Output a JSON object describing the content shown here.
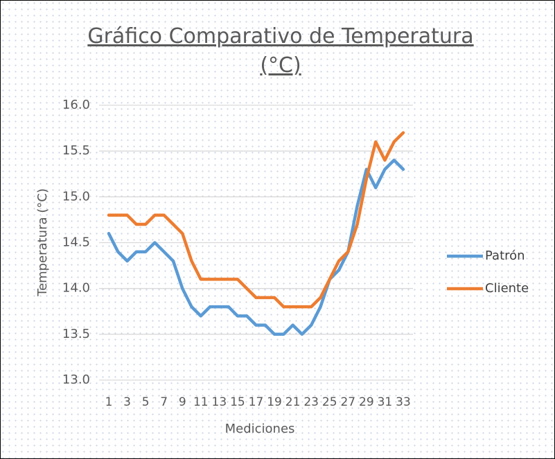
{
  "chart_data": {
    "type": "line",
    "title": "Gráfico Comparativo de Temperatura (°C)",
    "y_label": "Temperatura (°C)",
    "x_label": "Mediciones",
    "categories": [
      1,
      null,
      3,
      null,
      5,
      null,
      7,
      null,
      9,
      null,
      11,
      null,
      13,
      null,
      15,
      null,
      17,
      null,
      19,
      null,
      21,
      null,
      23,
      null,
      25,
      null,
      27,
      null,
      29,
      null,
      31,
      null,
      33
    ],
    "series": [
      {
        "name": "Patrón",
        "color": "#5b9bd5",
        "values": [
          14.6,
          14.4,
          14.3,
          14.4,
          14.4,
          14.5,
          14.4,
          14.3,
          14.0,
          13.8,
          13.7,
          13.8,
          13.8,
          13.8,
          13.7,
          13.7,
          13.6,
          13.6,
          13.5,
          13.5,
          13.6,
          13.5,
          13.6,
          13.8,
          14.1,
          14.2,
          14.4,
          14.9,
          15.3,
          15.1,
          15.3,
          15.4,
          15.3
        ]
      },
      {
        "name": "Cliente",
        "color": "#ed7d31",
        "values": [
          14.8,
          14.8,
          14.8,
          14.7,
          14.7,
          14.8,
          14.8,
          14.7,
          14.6,
          14.3,
          14.1,
          14.1,
          14.1,
          14.1,
          14.1,
          14.0,
          13.9,
          13.9,
          13.9,
          13.8,
          13.8,
          13.8,
          13.8,
          13.9,
          14.1,
          14.3,
          14.4,
          14.7,
          15.2,
          15.6,
          15.4,
          15.6,
          15.7
        ]
      }
    ],
    "ylim": [
      13,
      16
    ],
    "yticks": [
      {
        "value": 13,
        "label": "13.0"
      },
      {
        "value": 13.5,
        "label": "13.5"
      },
      {
        "value": 14,
        "label": "14.0"
      },
      {
        "value": 14.5,
        "label": "14.5"
      },
      {
        "value": 15,
        "label": "15.0"
      },
      {
        "value": 15.5,
        "label": "15.5"
      },
      {
        "value": 16,
        "label": "16.0"
      }
    ],
    "grid": true,
    "legend": "right"
  }
}
